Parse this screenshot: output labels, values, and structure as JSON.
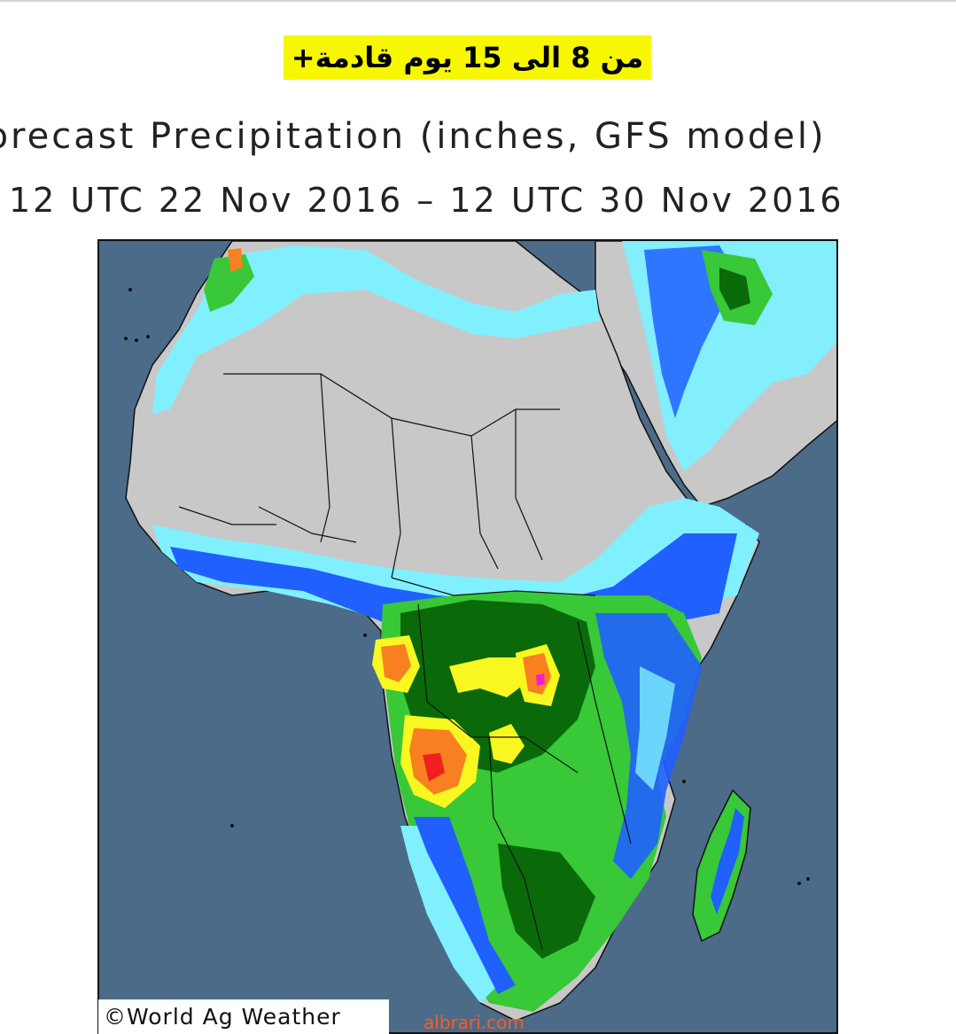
{
  "headline": "من 8 الى 15 يوم قادمة+",
  "map": {
    "title": "Forecast Precipitation (inches, GFS model)",
    "period": "12 UTC 22 Nov 2016 – 12 UTC 30 Nov 2016",
    "copyright": "©World Ag Weather",
    "colors": {
      "ocean": "#4c6b89",
      "dry_land": "#c8c8c8",
      "light_blue": "#80f0ff",
      "blue": "#2060ff",
      "light_green": "#38c838",
      "dark_green": "#0a6a0a",
      "yellow": "#f8f820",
      "orange": "#f88020",
      "red": "#f02020",
      "magenta": "#f020d0"
    }
  },
  "watermark": "albrari.com"
}
